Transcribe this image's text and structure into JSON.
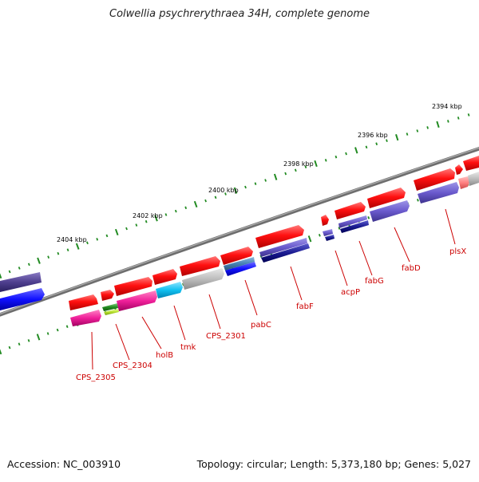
{
  "title": "Colwellia psychrerythraea 34H, complete genome",
  "footer": {
    "accession_label": "Accession:",
    "accession": "NC_003910",
    "topology_label": "Topology:",
    "topology": "circular",
    "length_label": "Length:",
    "length": "5,373,180 bp",
    "genes_label": "Genes:",
    "genes": "5,027"
  },
  "scale_labels": [
    "2394 kbp",
    "2396 kbp",
    "2398 kbp",
    "2400 kbp",
    "2402 kbp",
    "2404 kbp"
  ],
  "genes": [
    {
      "label": "plsX",
      "color": "#ff8080"
    },
    {
      "label": "fabD",
      "color": "#6a5acd"
    },
    {
      "label": "fabG",
      "color": "#191970"
    },
    {
      "label": "acpP",
      "color": "#000080"
    },
    {
      "label": "fabF",
      "color": "#4b0082"
    },
    {
      "label": "pabC",
      "color": "#4682b4"
    },
    {
      "label": "CPS_2301",
      "color": "#c0c0c0"
    },
    {
      "label": "tmk",
      "color": "#00bfff"
    },
    {
      "label": "holB",
      "color": "#ff1493"
    },
    {
      "label": "CPS_2304",
      "color": "#228b22"
    },
    {
      "label": "CPS_2305",
      "color": "#ff1493"
    }
  ],
  "colors": {
    "forward_strand": "#ff0000",
    "backbone": "#808080",
    "scale_ticks": "#228b22",
    "gene_labels": "#cc0000"
  }
}
